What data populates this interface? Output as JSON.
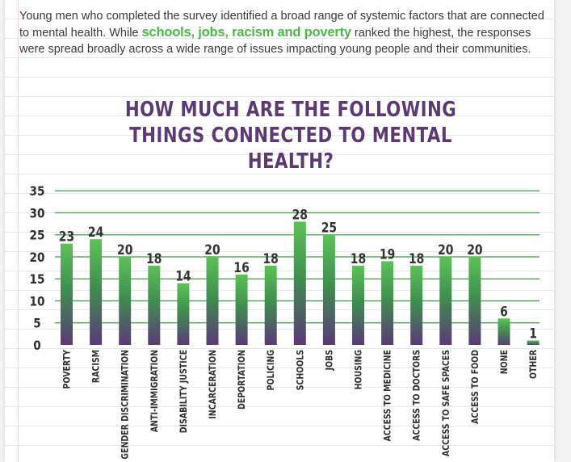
{
  "intro": {
    "part1": "Young men who completed the survey identified a broad range of systemic factors that are connected to mental health. While ",
    "highlight": "schools, jobs, racism and poverty",
    "part2": " ranked the highest, the responses were spread broadly across a wide range of issues impacting young people and their communities."
  },
  "colors": {
    "bar_top": "#5cc257",
    "bar_bottom": "#5a3a78",
    "grid": "#3f9a47",
    "title": "#5b3a73",
    "text": "#3a3a3a"
  },
  "chart_data": {
    "type": "bar",
    "title": "HOW MUCH ARE THE FOLLOWING THINGS CONNECTED TO MENTAL HEALTH?",
    "categories": [
      "POVERTY",
      "RACISM",
      "GENDER DISCRIMINATION",
      "ANTI-IMMIGRATION",
      "DISABILITY JUSTICE",
      "INCARCERATION",
      "DEPORTATION",
      "POLICING",
      "SCHOOLS",
      "JOBS",
      "HOUSING",
      "ACCESS TO MEDICINE",
      "ACCESS TO DOCTORS",
      "ACCESS TO SAFE SPACES",
      "ACCESS TO FOOD",
      "NONE",
      "OTHER"
    ],
    "values": [
      23,
      24,
      20,
      18,
      14,
      20,
      16,
      18,
      28,
      25,
      18,
      19,
      18,
      20,
      20,
      6,
      1
    ],
    "yticks": [
      "0",
      "5",
      "10",
      "15",
      "20",
      "25",
      "30",
      "35"
    ],
    "ylim": [
      0,
      35
    ],
    "grid": true
  }
}
